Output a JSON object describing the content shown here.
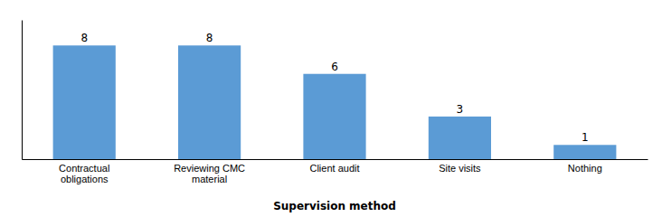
{
  "chart_data": {
    "type": "bar",
    "categories": [
      "Contractual\nobligations",
      "Reviewing CMC\nmaterial",
      "Client audit",
      "Site visits",
      "Nothing"
    ],
    "values": [
      8,
      8,
      6,
      3,
      1
    ],
    "color": "#5B9BD5",
    "xlabel": "Supervision method",
    "ylim": [
      0,
      9.8
    ],
    "data_labels": true,
    "tick_labels": "x",
    "grid": false
  }
}
